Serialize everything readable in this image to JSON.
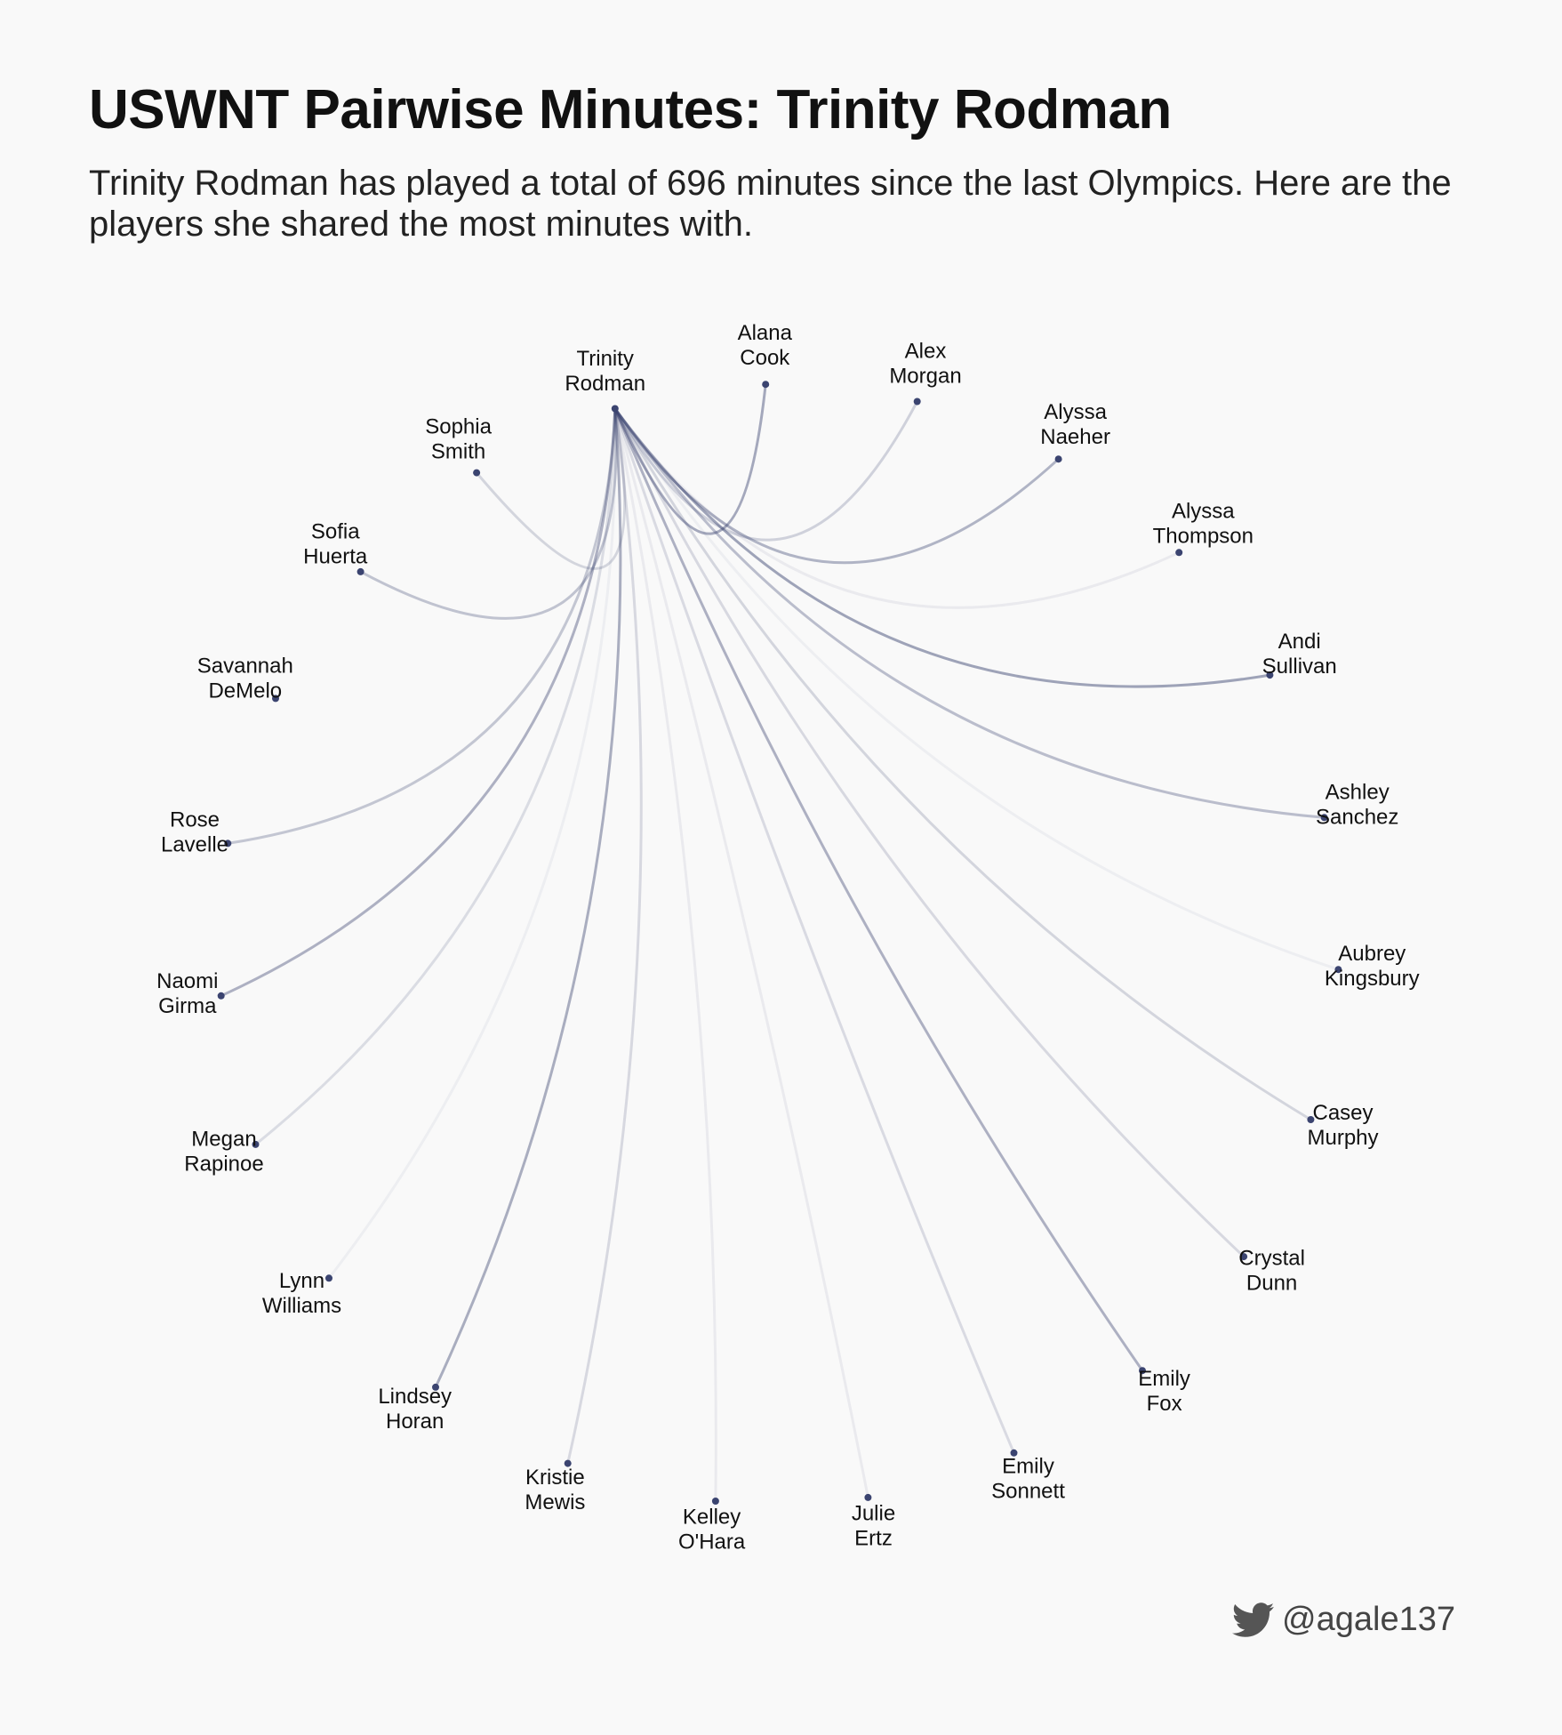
{
  "header": {
    "title": "USWNT Pairwise Minutes: Trinity Rodman",
    "subtitle": "Trinity Rodman has played a total of 696 minutes since the last Olympics. Here are the players she shared the most minutes with."
  },
  "footer": {
    "handle": "@agale137",
    "icon": "twitter-bird-icon"
  },
  "colors": {
    "background": "#f9f9f9",
    "link": "#3b4470",
    "node": "#3b4470",
    "text": "#111111"
  },
  "chart_data": {
    "type": "radial-network",
    "center": "Trinity Rodman",
    "players": [
      {
        "name": "Trinity Rodman",
        "lines": [
          "Trinity",
          "Rodman"
        ]
      },
      {
        "name": "Alana Cook",
        "lines": [
          "Alana",
          "Cook"
        ],
        "link_strength": 0.45
      },
      {
        "name": "Alex Morgan",
        "lines": [
          "Alex",
          "Morgan"
        ],
        "link_strength": 0.22
      },
      {
        "name": "Alyssa Naeher",
        "lines": [
          "Alyssa",
          "Naeher"
        ],
        "link_strength": 0.38
      },
      {
        "name": "Alyssa Thompson",
        "lines": [
          "Alyssa",
          "Thompson"
        ],
        "link_strength": 0.08
      },
      {
        "name": "Andi Sullivan",
        "lines": [
          "Andi",
          "Sullivan"
        ],
        "link_strength": 0.48
      },
      {
        "name": "Ashley Sanchez",
        "lines": [
          "Ashley",
          "Sanchez"
        ],
        "link_strength": 0.33
      },
      {
        "name": "Aubrey Kingsbury",
        "lines": [
          "Aubrey",
          "Kingsbury"
        ],
        "link_strength": 0.06
      },
      {
        "name": "Casey Murphy",
        "lines": [
          "Casey",
          "Murphy"
        ],
        "link_strength": 0.2
      },
      {
        "name": "Crystal Dunn",
        "lines": [
          "Crystal",
          "Dunn"
        ],
        "link_strength": 0.18
      },
      {
        "name": "Emily Fox",
        "lines": [
          "Emily",
          "Fox"
        ],
        "link_strength": 0.4
      },
      {
        "name": "Emily Sonnett",
        "lines": [
          "Emily",
          "Sonnett"
        ],
        "link_strength": 0.17
      },
      {
        "name": "Julie Ertz",
        "lines": [
          "Julie",
          "Ertz"
        ],
        "link_strength": 0.08
      },
      {
        "name": "Kelley O'Hara",
        "lines": [
          "Kelley",
          "O'Hara"
        ],
        "link_strength": 0.08
      },
      {
        "name": "Kristie Mewis",
        "lines": [
          "Kristie",
          "Mewis"
        ],
        "link_strength": 0.18
      },
      {
        "name": "Lindsey Horan",
        "lines": [
          "Lindsey",
          "Horan"
        ],
        "link_strength": 0.42
      },
      {
        "name": "Lynn Williams",
        "lines": [
          "Lynn",
          "Williams"
        ],
        "link_strength": 0.06
      },
      {
        "name": "Megan Rapinoe",
        "lines": [
          "Megan",
          "Rapinoe"
        ],
        "link_strength": 0.16
      },
      {
        "name": "Naomi Girma",
        "lines": [
          "Naomi",
          "Girma"
        ],
        "link_strength": 0.4
      },
      {
        "name": "Rose Lavelle",
        "lines": [
          "Rose",
          "Lavelle"
        ],
        "link_strength": 0.28
      },
      {
        "name": "Savannah DeMelo",
        "lines": [
          "Savannah",
          "DeMelo"
        ],
        "link_strength": 0
      },
      {
        "name": "Sofia Huerta",
        "lines": [
          "Sofia",
          "Huerta"
        ],
        "link_strength": 0.3
      },
      {
        "name": "Sophia Smith",
        "lines": [
          "Sophia",
          "Smith"
        ],
        "link_strength": 0.2
      }
    ]
  }
}
